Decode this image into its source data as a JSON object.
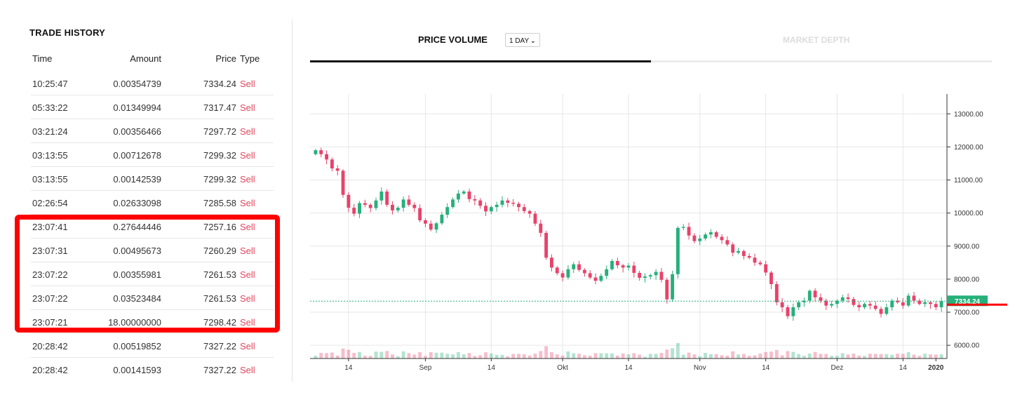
{
  "trade_history": {
    "title": "TRADE HISTORY",
    "columns": {
      "time": "Time",
      "amount": "Amount",
      "price": "Price",
      "type": "Type"
    },
    "rows": [
      {
        "time": "10:25:47",
        "amount": "0.00354739",
        "price": "7334.24",
        "type": "Sell"
      },
      {
        "time": "05:33:22",
        "amount": "0.01349994",
        "price": "7317.47",
        "type": "Sell"
      },
      {
        "time": "03:21:24",
        "amount": "0.00356466",
        "price": "7297.72",
        "type": "Sell"
      },
      {
        "time": "03:13:55",
        "amount": "0.00712678",
        "price": "7299.32",
        "type": "Sell"
      },
      {
        "time": "03:13:55",
        "amount": "0.00142539",
        "price": "7299.32",
        "type": "Sell"
      },
      {
        "time": "02:26:54",
        "amount": "0.02633098",
        "price": "7285.58",
        "type": "Sell"
      },
      {
        "time": "23:07:41",
        "amount": "0.27644446",
        "price": "7257.16",
        "type": "Sell"
      },
      {
        "time": "23:07:31",
        "amount": "0.00495673",
        "price": "7260.29",
        "type": "Sell"
      },
      {
        "time": "23:07:22",
        "amount": "0.00355981",
        "price": "7261.53",
        "type": "Sell"
      },
      {
        "time": "23:07:22",
        "amount": "0.03523484",
        "price": "7261.53",
        "type": "Sell"
      },
      {
        "time": "23:07:21",
        "amount": "18.00000000",
        "price": "7298.42",
        "type": "Sell"
      },
      {
        "time": "20:28:42",
        "amount": "0.00519852",
        "price": "7327.22",
        "type": "Sell"
      },
      {
        "time": "20:28:42",
        "amount": "0.00141593",
        "price": "7327.22",
        "type": "Sell"
      }
    ]
  },
  "tabs": {
    "price_volume": "PRICE VOLUME",
    "interval": "1 DAY",
    "market_depth": "MARKET DEPTH"
  },
  "colors": {
    "up": "#26b07a",
    "down": "#e8426a",
    "sell": "#e0475e",
    "highlight": "#ff0000"
  },
  "chart_data": {
    "type": "candlestick",
    "y_axis_ticks": [
      "13000.00",
      "12000.00",
      "11000.00",
      "10000.00",
      "9000.00",
      "8000.00",
      "7000.00",
      "6000.00"
    ],
    "y_axis_values": [
      13000,
      12000,
      11000,
      10000,
      9000,
      8000,
      7000,
      6000
    ],
    "x_axis_ticks": [
      "14",
      "Sep",
      "14",
      "Okt",
      "14",
      "Nov",
      "14",
      "Dez",
      "14",
      "2020"
    ],
    "ylim": [
      5600,
      13600
    ],
    "current_price": 7334.24,
    "current_price_label": "7334.24",
    "series_close": [
      11900,
      11780,
      11620,
      11350,
      11280,
      10550,
      10160,
      9980,
      10300,
      10250,
      10150,
      10380,
      10650,
      10250,
      10080,
      10160,
      10410,
      10250,
      10150,
      9780,
      9680,
      9500,
      9690,
      9950,
      10180,
      10410,
      10590,
      10650,
      10420,
      10380,
      10220,
      10050,
      10180,
      10250,
      10380,
      10310,
      10280,
      10180,
      10060,
      9980,
      9680,
      9400,
      8650,
      8350,
      8180,
      8050,
      8300,
      8450,
      8280,
      8180,
      8050,
      7950,
      8100,
      8300,
      8550,
      8420,
      8350,
      8410,
      8190,
      8040,
      8080,
      8120,
      8220,
      7980,
      7390,
      8150,
      9550,
      9580,
      9320,
      9150,
      9230,
      9350,
      9420,
      9280,
      9180,
      9050,
      8800,
      8850,
      8700,
      8650,
      8500,
      8450,
      8200,
      7850,
      7300,
      7150,
      6880,
      7150,
      7300,
      7350,
      7650,
      7450,
      7350,
      7200,
      7250,
      7350,
      7450,
      7400,
      7220,
      7150,
      7250,
      7200,
      7100,
      6950,
      7150,
      7350,
      7300,
      7200,
      7500,
      7350,
      7250,
      7300,
      7250,
      7150,
      7334
    ]
  }
}
